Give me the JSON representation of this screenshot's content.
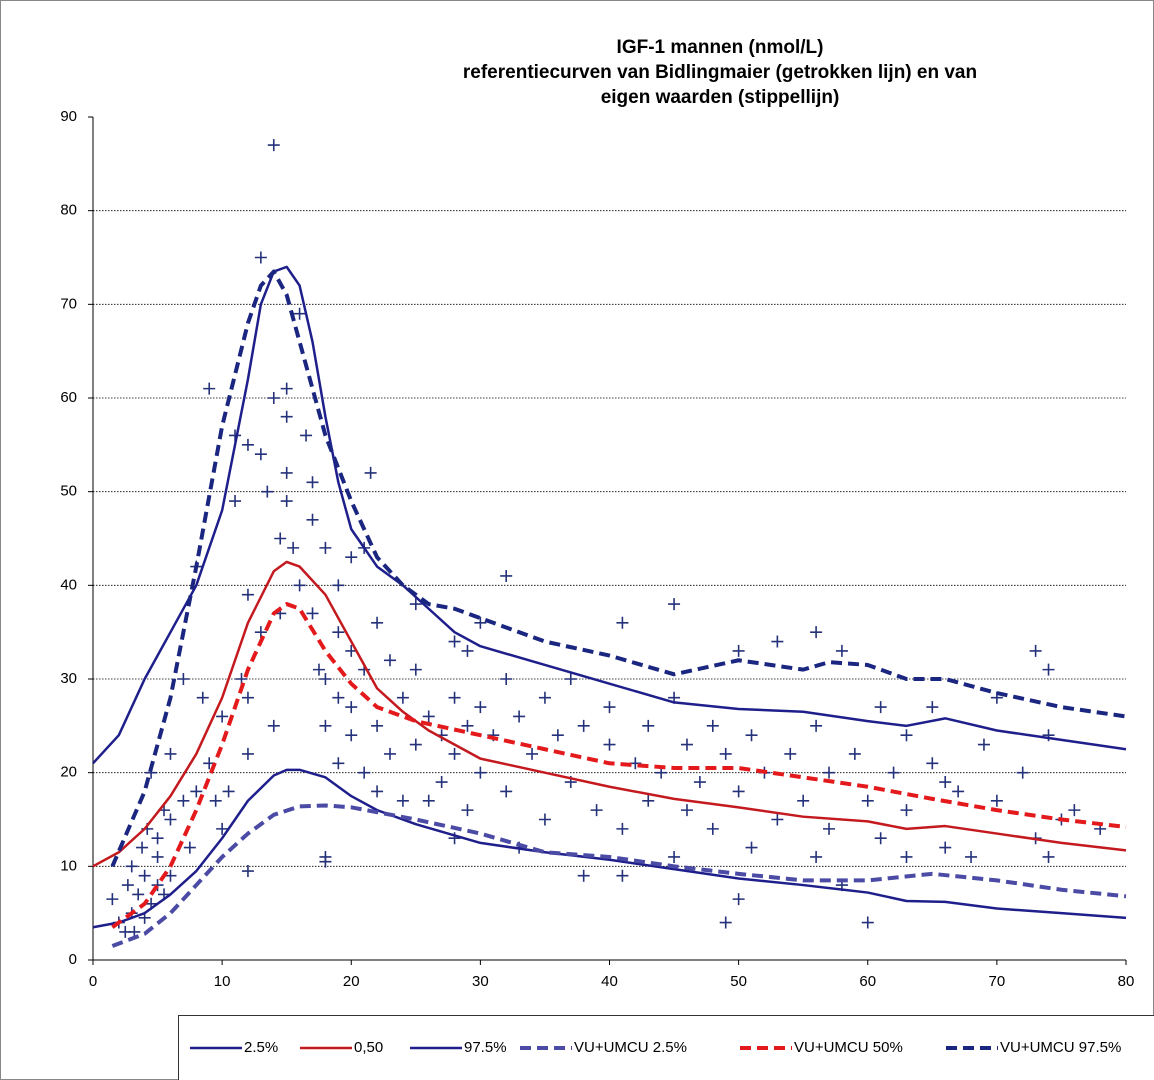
{
  "chart_data": {
    "type": "line",
    "title": [
      "IGF-1 mannen (nmol/L)",
      "referentiecurven van Bidlingmaier (getrokken lijn) en van",
      "eigen waarden (stippellijn)"
    ],
    "xlim": [
      0,
      80
    ],
    "xticks": [
      0,
      10,
      20,
      30,
      40,
      50,
      60,
      70,
      80
    ],
    "ylim": [
      0,
      90
    ],
    "yticks": [
      0,
      10,
      20,
      30,
      40,
      50,
      60,
      70,
      80,
      90
    ],
    "grid": true,
    "legend": "bottom",
    "points": {
      "color": "#25327a",
      "x": [
        1.5,
        2,
        2.5,
        2.7,
        3,
        3,
        3.2,
        3.5,
        3.8,
        4,
        4,
        4.2,
        4.5,
        4.5,
        5,
        5,
        5,
        5.5,
        5.5,
        6,
        6,
        6,
        7,
        7,
        7.5,
        8,
        8,
        8.5,
        9,
        9,
        9.5,
        10,
        10,
        10.5,
        11,
        11,
        11.5,
        12,
        12,
        12,
        12,
        12,
        13,
        13,
        13,
        13.5,
        14,
        14,
        14,
        14.5,
        14.5,
        15,
        15,
        15,
        15,
        15.5,
        16,
        16,
        16.5,
        17,
        17,
        17,
        17.5,
        18,
        18,
        18,
        18,
        18,
        19,
        19,
        19,
        19,
        20,
        20,
        20,
        20,
        21,
        21,
        21,
        21.5,
        22,
        22,
        22,
        23,
        23,
        24,
        24,
        25,
        25,
        25,
        26,
        26,
        27,
        27,
        28,
        28,
        28,
        28,
        29,
        29,
        29,
        30,
        30,
        30,
        31,
        32,
        32,
        32,
        33,
        33,
        34,
        35,
        35,
        36,
        37,
        37,
        38,
        38,
        39,
        40,
        40,
        41,
        41,
        41,
        42,
        43,
        43,
        44,
        45,
        45,
        45,
        46,
        46,
        47,
        48,
        48,
        49,
        49,
        50,
        50,
        50,
        51,
        51,
        52,
        53,
        53,
        54,
        55,
        56,
        56,
        56,
        57,
        57,
        58,
        58,
        59,
        60,
        60,
        61,
        61,
        62,
        63,
        63,
        63,
        65,
        65,
        66,
        66,
        67,
        68,
        69,
        70,
        70,
        72,
        73,
        73,
        74,
        74,
        74,
        75,
        76,
        78
      ],
      "values": [
        6.5,
        4,
        3,
        8,
        5,
        10,
        3,
        7,
        12,
        4.5,
        9,
        14,
        6,
        20,
        8,
        13,
        11,
        7,
        16,
        15,
        22,
        9,
        17,
        30,
        12,
        42,
        18,
        28,
        61,
        21,
        17,
        26,
        14,
        18,
        56,
        49,
        30,
        55,
        39,
        28,
        22,
        9.5,
        75,
        54,
        35,
        50,
        25,
        60,
        87,
        45,
        37,
        61,
        58,
        52,
        49,
        44,
        40,
        69,
        56,
        51,
        47,
        37,
        31,
        44,
        30,
        25,
        11,
        10.5,
        40,
        35,
        28,
        21,
        43,
        33,
        27,
        24,
        44,
        31,
        20,
        52,
        36,
        25,
        18,
        32,
        22,
        28,
        17,
        38,
        31,
        23,
        26,
        17,
        24,
        19,
        34,
        28,
        22,
        13,
        33,
        25,
        16,
        36,
        27,
        20,
        24,
        41,
        30,
        18,
        26,
        12,
        22,
        28,
        15,
        24,
        30,
        19,
        25,
        9,
        16,
        23,
        27,
        36,
        14,
        9,
        21,
        25,
        17,
        20,
        38,
        28,
        11,
        23,
        16,
        19,
        25,
        14,
        4,
        22,
        33,
        18,
        6.5,
        24,
        12,
        20,
        34,
        15,
        22,
        17,
        35,
        25,
        11,
        20,
        14,
        33,
        8,
        22,
        17,
        4,
        27,
        13,
        20,
        24,
        16,
        11,
        27,
        21,
        19,
        12,
        18,
        11,
        23,
        28,
        17,
        20,
        33,
        13,
        31,
        24,
        11,
        15,
        16,
        14
      ]
    },
    "series": [
      {
        "name": "2.5%",
        "color": "#1f1f8c",
        "dashed": false,
        "x": [
          0,
          2,
          4,
          6,
          8,
          10,
          12,
          14,
          15,
          16,
          18,
          20,
          22,
          25,
          30,
          35,
          40,
          45,
          50,
          55,
          60,
          63,
          66,
          70,
          75,
          80
        ],
        "values": [
          3.5,
          4,
          5,
          7,
          9.5,
          13,
          17,
          19.7,
          20.3,
          20.3,
          19.5,
          17.5,
          16,
          14.5,
          12.5,
          11.5,
          10.7,
          9.7,
          8.7,
          8,
          7.2,
          6.3,
          6.2,
          5.5,
          5,
          4.5
        ]
      },
      {
        "name": "0,50",
        "color": "#c41a1f",
        "dashed": false,
        "x": [
          0,
          2,
          4,
          6,
          8,
          10,
          12,
          14,
          15,
          16,
          18,
          20,
          22,
          24,
          26,
          30,
          35,
          40,
          45,
          50,
          55,
          60,
          63,
          66,
          70,
          75,
          80
        ],
        "values": [
          10,
          11.5,
          14,
          17.5,
          22,
          28,
          36,
          41.5,
          42.5,
          42,
          39,
          34,
          29,
          26.5,
          24.5,
          21.5,
          20,
          18.5,
          17.2,
          16.3,
          15.3,
          14.8,
          14,
          14.3,
          13.5,
          12.5,
          11.7
        ]
      },
      {
        "name": "97.5%",
        "color": "#1f1f8c",
        "dashed": false,
        "x": [
          0,
          2,
          4,
          6,
          8,
          10,
          12,
          13,
          14,
          15,
          16,
          17,
          18,
          19,
          20,
          22,
          24,
          26,
          28,
          30,
          35,
          40,
          45,
          50,
          55,
          60,
          63,
          66,
          70,
          75,
          80
        ],
        "values": [
          21,
          24,
          30,
          35,
          40,
          48,
          62,
          70,
          73.5,
          74,
          72,
          66,
          58,
          51,
          46,
          42,
          40,
          37.5,
          35,
          33.5,
          31.5,
          29.5,
          27.5,
          26.8,
          26.5,
          25.5,
          25,
          25.8,
          24.5,
          23.5,
          22.5
        ]
      },
      {
        "name": "VU+UMCU 2.5%",
        "color": "#4b4ba6",
        "dashed": true,
        "x": [
          1.5,
          4,
          6,
          8,
          10,
          12,
          14,
          16,
          18,
          20,
          25,
          30,
          35,
          40,
          45,
          50,
          55,
          60,
          65,
          70,
          75,
          80
        ],
        "values": [
          1.5,
          2.8,
          5,
          8,
          11,
          13.5,
          15.5,
          16.4,
          16.5,
          16.3,
          15,
          13.5,
          11.5,
          11,
          10,
          9.2,
          8.5,
          8.5,
          9.2,
          8.5,
          7.5,
          6.8
        ]
      },
      {
        "name": "VU+UMCU 50%",
        "color": "#e3191c",
        "dashed": true,
        "x": [
          1.5,
          4,
          6,
          8,
          10,
          12,
          14,
          15,
          16,
          18,
          20,
          22,
          25,
          30,
          35,
          40,
          45,
          50,
          55,
          60,
          65,
          70,
          75,
          80
        ],
        "values": [
          3.5,
          6,
          10,
          16,
          23,
          31,
          37,
          38,
          37.5,
          33,
          29.5,
          27,
          25.5,
          24,
          22.5,
          21,
          20.5,
          20.5,
          19.5,
          18.5,
          17.2,
          16,
          15,
          14.2
        ]
      },
      {
        "name": "VU+UMCU 97.5%",
        "color": "#1a2680",
        "dashed": true,
        "x": [
          1.5,
          4,
          6,
          8,
          10,
          12,
          13,
          14,
          15,
          16,
          18,
          20,
          22,
          24,
          26,
          28,
          30,
          35,
          40,
          45,
          50,
          55,
          57,
          60,
          63,
          66,
          70,
          75,
          80
        ],
        "values": [
          10,
          18,
          28,
          42,
          57,
          68,
          72,
          73.5,
          71,
          66,
          56,
          49,
          43,
          40,
          38,
          37.5,
          36.5,
          34,
          32.5,
          30.5,
          32,
          31,
          31.8,
          31.5,
          30,
          30,
          28.5,
          27,
          26
        ]
      }
    ]
  }
}
